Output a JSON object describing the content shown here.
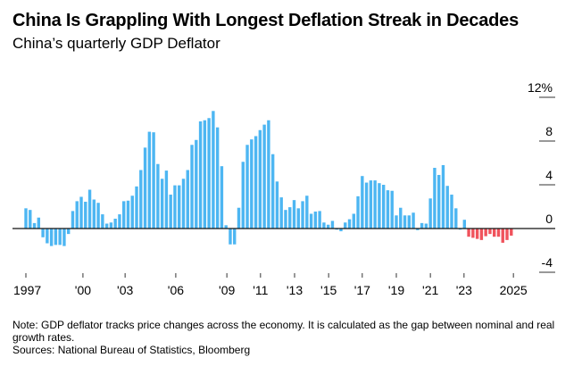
{
  "chart_data": {
    "type": "bar",
    "title": "China Is Grappling With Longest Deflation Streak in Decades",
    "subtitle": "China’s quarterly GDP Deflator",
    "ylabel": "",
    "xlabel": "",
    "ylim": [
      -4,
      12
    ],
    "y_ticks": [
      {
        "value": 12,
        "label": "12%"
      },
      {
        "value": 8,
        "label": "8"
      },
      {
        "value": 4,
        "label": "4"
      },
      {
        "value": 0,
        "label": "0"
      },
      {
        "value": -4,
        "label": "-4"
      }
    ],
    "x_ticks": [
      {
        "label": "1997",
        "index": 0
      },
      {
        "label": "'00",
        "index": 13.4
      },
      {
        "label": "'03",
        "index": 23.3
      },
      {
        "label": "'06",
        "index": 35.2
      },
      {
        "label": "'09",
        "index": 47.2
      },
      {
        "label": "'11",
        "index": 55.1
      },
      {
        "label": "'13",
        "index": 63.1
      },
      {
        "label": "'15",
        "index": 71.1
      },
      {
        "label": "'17",
        "index": 79
      },
      {
        "label": "'19",
        "index": 87
      },
      {
        "label": "'21",
        "index": 95
      },
      {
        "label": "'23",
        "index": 102.9
      },
      {
        "label": "2025",
        "index": 114.5
      }
    ],
    "values": [
      1.85,
      1.7,
      0.5,
      1.0,
      -0.8,
      -1.35,
      -1.6,
      -1.5,
      -1.5,
      -1.6,
      -0.5,
      1.6,
      2.5,
      2.9,
      2.45,
      3.55,
      2.65,
      2.35,
      1.3,
      0.45,
      0.55,
      0.9,
      1.3,
      2.5,
      2.55,
      3.0,
      3.85,
      5.35,
      7.4,
      8.85,
      8.8,
      5.9,
      4.55,
      5.3,
      3.1,
      3.95,
      3.95,
      4.55,
      5.35,
      7.65,
      8.1,
      9.8,
      9.9,
      10.1,
      10.75,
      9.25,
      5.7,
      0.3,
      -1.45,
      -1.45,
      1.9,
      6.1,
      7.65,
      8.15,
      8.45,
      9.0,
      9.5,
      9.9,
      6.8,
      4.3,
      2.85,
      1.7,
      1.95,
      2.6,
      1.85,
      2.5,
      3.0,
      1.35,
      1.55,
      1.6,
      0.55,
      0.35,
      0.7,
      -0.1,
      -0.25,
      0.55,
      0.85,
      1.35,
      2.95,
      4.8,
      4.2,
      4.4,
      4.4,
      4.15,
      4.0,
      3.5,
      3.45,
      1.2,
      1.9,
      1.2,
      1.2,
      1.45,
      -0.15,
      0.5,
      0.45,
      2.75,
      5.55,
      4.9,
      5.8,
      3.9,
      3.1,
      1.85,
      -0.1,
      0.8,
      -0.75,
      -0.85,
      -0.95,
      -1.05,
      -0.7,
      -0.5,
      -0.75,
      -0.75,
      -1.3,
      -1.05,
      -0.65
    ],
    "highlight_from_index": 104,
    "colors": {
      "normal": "#4db6f2",
      "deflation_streak": "#f0535c"
    },
    "note": "Note: GDP deflator tracks price changes across the economy. It is calculated as the gap between nominal and real growth rates.",
    "sources": "Sources: National Bureau of Statistics, Bloomberg"
  }
}
